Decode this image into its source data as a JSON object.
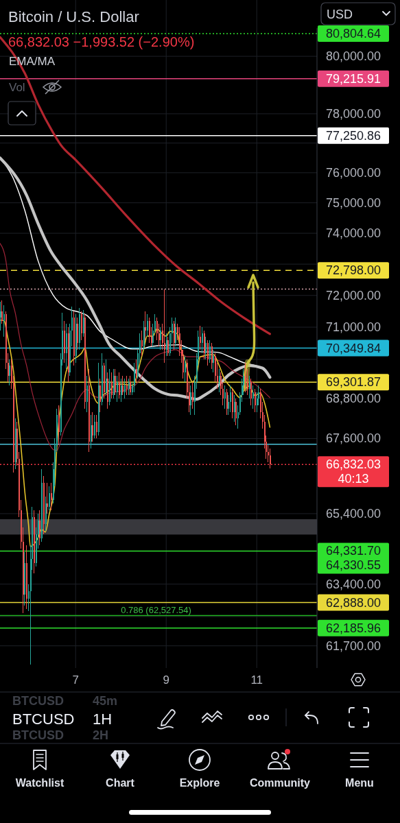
{
  "chart_data": {
    "type": "candlestick",
    "title": "Bitcoin / U.S. Dollar",
    "subtitle": "66,832.03 −1,993.52 (−2.90%)",
    "x": [
      5.3333,
      5.375,
      5.4167,
      5.4583,
      5.5,
      5.5417,
      5.5833,
      5.625,
      5.6667,
      5.7083,
      5.75,
      5.7917,
      5.8333,
      5.875,
      5.9167,
      5.9583,
      6,
      6.0417,
      6.0833,
      6.125,
      6.1667,
      6.2083,
      6.25,
      6.2917,
      6.3333,
      6.375,
      6.4167,
      6.4583,
      6.5,
      6.5417,
      6.5833,
      6.625,
      6.6667,
      6.7083,
      6.75,
      6.7917,
      6.8333,
      6.875,
      6.9167,
      6.9583,
      7,
      7.0417,
      7.0833,
      7.125,
      7.1667,
      7.2083,
      7.25,
      7.2917,
      7.3333,
      7.375,
      7.4167,
      7.4583,
      7.5,
      7.5417,
      7.5833,
      7.625,
      7.6667,
      7.7083,
      7.75,
      7.7917,
      7.8333,
      7.875,
      7.9167,
      7.9583,
      8,
      8.0417,
      8.0833,
      8.125,
      8.1667,
      8.2083,
      8.25,
      8.2917,
      8.3333,
      8.375,
      8.4167,
      8.4583,
      8.5,
      8.5417,
      8.5833,
      8.625,
      8.6667,
      8.7083,
      8.75,
      8.7917,
      8.8333,
      8.875,
      8.9167,
      8.9583,
      9,
      9.0417,
      9.0833,
      9.125,
      9.1667,
      9.2083,
      9.25,
      9.2917,
      9.3333,
      9.375,
      9.4167,
      9.4583,
      9.5,
      9.5417,
      9.5833,
      9.625,
      9.6667,
      9.7083,
      9.75,
      9.7917,
      9.8333,
      9.875,
      9.9167,
      9.9583,
      10,
      10.0417,
      10.0833,
      10.125,
      10.1667,
      10.2083,
      10.25,
      10.2917,
      10.3333,
      10.375,
      10.4167,
      10.4583,
      10.5,
      10.5417,
      10.5833,
      10.625,
      10.6667,
      10.7083,
      10.75,
      10.7917,
      10.8333,
      10.875,
      10.9167,
      10.9583,
      11,
      11.0417,
      11.0833,
      11.125,
      11.1667,
      11.2083,
      11.25,
      11.2917
    ],
    "ohlc": [
      [
        71300,
        71800,
        70900,
        71500
      ],
      [
        71500,
        71850,
        71100,
        71200
      ],
      [
        71200,
        71700,
        70700,
        71400
      ],
      [
        71400,
        71500,
        69700,
        69900
      ],
      [
        69900,
        70200,
        69300,
        69500
      ],
      [
        69500,
        70000,
        69200,
        69800
      ],
      [
        69800,
        70000,
        69100,
        69300
      ],
      [
        69300,
        69500,
        66600,
        66900
      ],
      [
        66900,
        68200,
        66700,
        67900
      ],
      [
        67900,
        68100,
        66800,
        67000
      ],
      [
        67000,
        67200,
        65300,
        65500
      ],
      [
        65500,
        65800,
        64400,
        64600
      ],
      [
        64600,
        65000,
        62600,
        63100
      ],
      [
        63100,
        64300,
        62800,
        64000
      ],
      [
        64000,
        64500,
        62700,
        63000
      ],
      [
        63000,
        63400,
        62650,
        63200
      ],
      [
        63200,
        64500,
        61200,
        64100
      ],
      [
        64100,
        65600,
        63800,
        65300
      ],
      [
        65300,
        65500,
        63700,
        64000
      ],
      [
        64000,
        65000,
        63900,
        64800
      ],
      [
        64800,
        65400,
        64400,
        65200
      ],
      [
        65200,
        65500,
        64500,
        64700
      ],
      [
        64700,
        66700,
        64600,
        66300
      ],
      [
        66300,
        66500,
        64800,
        65100
      ],
      [
        65100,
        65900,
        64900,
        65700
      ],
      [
        65700,
        66300,
        65400,
        65600
      ],
      [
        65600,
        66200,
        65500,
        66000
      ],
      [
        66000,
        66300,
        65500,
        65800
      ],
      [
        65800,
        66900,
        65700,
        66700
      ],
      [
        66700,
        67600,
        66200,
        67400
      ],
      [
        67400,
        68500,
        67200,
        68300
      ],
      [
        68300,
        68600,
        67400,
        67800
      ],
      [
        67800,
        70200,
        67700,
        70000
      ],
      [
        70000,
        71450,
        69800,
        70900
      ],
      [
        70900,
        71200,
        69900,
        70200
      ],
      [
        70200,
        71100,
        69700,
        70800
      ],
      [
        70800,
        71000,
        69300,
        69600
      ],
      [
        69600,
        71100,
        69500,
        70900
      ],
      [
        70900,
        71650,
        70400,
        71300
      ],
      [
        71300,
        71500,
        69800,
        70100
      ],
      [
        70100,
        71400,
        69900,
        71100
      ],
      [
        71100,
        71300,
        70300,
        70500
      ],
      [
        70500,
        71600,
        70300,
        71400
      ],
      [
        71400,
        71500,
        70600,
        70800
      ],
      [
        70800,
        71550,
        70700,
        71300
      ],
      [
        71300,
        71400,
        68500,
        68700
      ],
      [
        68700,
        69500,
        68400,
        69200
      ],
      [
        69200,
        69700,
        67200,
        67500
      ],
      [
        67500,
        68300,
        67300,
        68000
      ],
      [
        68000,
        68400,
        67500,
        67700
      ],
      [
        67700,
        68300,
        67600,
        68100
      ],
      [
        68100,
        68300,
        67600,
        67800
      ],
      [
        67800,
        69900,
        67700,
        69200
      ],
      [
        69200,
        69400,
        68400,
        68700
      ],
      [
        68700,
        70200,
        68600,
        69800
      ],
      [
        69800,
        69900,
        68800,
        69000
      ],
      [
        69000,
        70000,
        68900,
        69400
      ],
      [
        69400,
        69600,
        68500,
        68700
      ],
      [
        68700,
        69700,
        68600,
        69300
      ],
      [
        69300,
        69600,
        68800,
        68900
      ],
      [
        68900,
        69700,
        68800,
        69500
      ],
      [
        69500,
        69700,
        68900,
        69000
      ],
      [
        69000,
        69500,
        68700,
        69300
      ],
      [
        69300,
        69600,
        68800,
        68900
      ],
      [
        68900,
        69400,
        68700,
        69200
      ],
      [
        69200,
        69500,
        68900,
        69000
      ],
      [
        69000,
        69400,
        68800,
        69200
      ],
      [
        69200,
        69500,
        68900,
        69100
      ],
      [
        69100,
        69400,
        68900,
        69300
      ],
      [
        69300,
        69500,
        68900,
        69000
      ],
      [
        69000,
        69300,
        68900,
        69200
      ],
      [
        69200,
        69900,
        69000,
        69700
      ],
      [
        69700,
        70000,
        69300,
        69500
      ],
      [
        69500,
        70300,
        69400,
        70200
      ],
      [
        70200,
        70800,
        69900,
        70600
      ],
      [
        70600,
        70900,
        70100,
        70400
      ],
      [
        70400,
        71200,
        70300,
        71000
      ],
      [
        71000,
        71500,
        70600,
        70900
      ],
      [
        70900,
        71400,
        70700,
        71200
      ],
      [
        71200,
        71300,
        70500,
        70700
      ],
      [
        70700,
        71000,
        70400,
        70500
      ],
      [
        70500,
        71100,
        70400,
        70900
      ],
      [
        70900,
        71400,
        70800,
        71200
      ],
      [
        71200,
        71300,
        70600,
        70800
      ],
      [
        70800,
        71100,
        70400,
        70600
      ],
      [
        70600,
        71000,
        70300,
        70900
      ],
      [
        70900,
        71100,
        70300,
        70500
      ],
      [
        70500,
        72200,
        69900,
        70300
      ],
      [
        70300,
        70800,
        70100,
        70600
      ],
      [
        70600,
        70700,
        70100,
        70200
      ],
      [
        70200,
        71000,
        70100,
        70800
      ],
      [
        70800,
        71300,
        70500,
        71100
      ],
      [
        71100,
        71200,
        70300,
        70500
      ],
      [
        70500,
        71300,
        70400,
        71000
      ],
      [
        71000,
        71100,
        70600,
        70800
      ],
      [
        70800,
        71000,
        70100,
        70300
      ],
      [
        70300,
        70600,
        69900,
        70100
      ],
      [
        70100,
        70300,
        69400,
        69600
      ],
      [
        69600,
        70100,
        69300,
        69900
      ],
      [
        69900,
        70000,
        68800,
        69000
      ],
      [
        69000,
        69300,
        68400,
        68600
      ],
      [
        68600,
        69200,
        68300,
        69000
      ],
      [
        69000,
        69300,
        68500,
        68700
      ],
      [
        68700,
        69500,
        68300,
        69300
      ],
      [
        69300,
        70200,
        69100,
        70000
      ],
      [
        70000,
        70900,
        69800,
        70700
      ],
      [
        70700,
        71050,
        70300,
        70500
      ],
      [
        70500,
        71000,
        70200,
        70800
      ],
      [
        70800,
        70900,
        70000,
        70200
      ],
      [
        70200,
        70700,
        70000,
        70500
      ],
      [
        70500,
        70600,
        69800,
        70000
      ],
      [
        70000,
        70600,
        69900,
        70400
      ],
      [
        70400,
        70500,
        69700,
        69900
      ],
      [
        69900,
        70300,
        69600,
        70100
      ],
      [
        70100,
        70200,
        69300,
        69500
      ],
      [
        69500,
        69900,
        69100,
        69300
      ],
      [
        69300,
        69700,
        69000,
        69500
      ],
      [
        69500,
        69600,
        68900,
        69100
      ],
      [
        69100,
        69300,
        68600,
        68800
      ],
      [
        68800,
        69200,
        68500,
        69000
      ],
      [
        69000,
        69100,
        68300,
        68500
      ],
      [
        68500,
        68900,
        68300,
        68700
      ],
      [
        68700,
        69200,
        68400,
        69000
      ],
      [
        69000,
        69100,
        68200,
        68400
      ],
      [
        68400,
        68900,
        68100,
        68700
      ],
      [
        68700,
        68800,
        68000,
        68200
      ],
      [
        68200,
        68600,
        67900,
        68400
      ],
      [
        68400,
        69000,
        68300,
        68900
      ],
      [
        68900,
        69400,
        68700,
        69200
      ],
      [
        69200,
        69700,
        68900,
        69500
      ],
      [
        69500,
        69900,
        69000,
        69300
      ],
      [
        69300,
        69700,
        68900,
        69100
      ],
      [
        69100,
        69500,
        68800,
        69300
      ],
      [
        69300,
        69400,
        68600,
        68800
      ],
      [
        68800,
        69200,
        68500,
        69000
      ],
      [
        69000,
        69100,
        68400,
        68600
      ],
      [
        68600,
        69000,
        68400,
        68800
      ],
      [
        68800,
        69200,
        68600,
        69000
      ],
      [
        69000,
        69100,
        68200,
        68400
      ],
      [
        68400,
        68700,
        67900,
        68100
      ],
      [
        68100,
        68300,
        67300,
        67500
      ],
      [
        67500,
        67700,
        67000,
        67200
      ],
      [
        67200,
        67400,
        66900,
        67100
      ],
      [
        67100,
        67300,
        66710,
        66832.03
      ]
    ],
    "series": [
      {
        "type": "line",
        "color": "#b3262f",
        "x": [
          5.33,
          5.88,
          6.17,
          6.5,
          6.67,
          7,
          7.58,
          8.13,
          8.71,
          9.21,
          9.71,
          10.21,
          10.71,
          11.29
        ],
        "values": [
          80680,
          79400,
          78330,
          77360,
          76940,
          76430,
          75490,
          74560,
          73650,
          72960,
          72390,
          71800,
          71300,
          70790
        ]
      },
      {
        "type": "line",
        "color": "#ffffff",
        "x": [
          5.33,
          5.63,
          5.88,
          6.17,
          6.5,
          6.79,
          7.08,
          7.25,
          7.54,
          7.83,
          8.25,
          8.46,
          8.63,
          8.92,
          9.29,
          9.42,
          9.71,
          10.13,
          10.42,
          10.71,
          11.08,
          11.29
        ],
        "values": [
          76500,
          75790,
          74740,
          73110,
          72020,
          71600,
          71470,
          71370,
          70870,
          70600,
          70320,
          70320,
          70390,
          70430,
          70450,
          70390,
          70240,
          70220,
          70070,
          69900,
          69750,
          69480
        ]
      },
      {
        "type": "line",
        "color": "#c4c4c4",
        "x": [
          5.33,
          5.92,
          6.17,
          6.46,
          6.67,
          6.96,
          7.25,
          7.5,
          7.75,
          8,
          8.25,
          8.5,
          8.75,
          9.04,
          9.29,
          9.5,
          9.67,
          9.83,
          10.13,
          10.38,
          10.63,
          10.83,
          11.13,
          11.29
        ],
        "values": [
          76500,
          75240,
          74320,
          73400,
          72960,
          72430,
          71840,
          71150,
          70450,
          70090,
          69730,
          69390,
          69100,
          68930,
          68890,
          68830,
          68780,
          68890,
          69180,
          69520,
          69730,
          69810,
          69730,
          69450
        ]
      },
      {
        "type": "line",
        "color": "#9e2438",
        "x": [
          5.33,
          5.46,
          5.54,
          5.67,
          5.79,
          5.92,
          6.04,
          6.21,
          6.38,
          6.5,
          6.58,
          6.75,
          6.92,
          7.08,
          7.25,
          7.38,
          7.54,
          7.75,
          8,
          8.25,
          8.42,
          8.54,
          8.75,
          9,
          9.21,
          9.46,
          9.71,
          10.21,
          10.46,
          10.71,
          10.96,
          11.29
        ],
        "values": [
          73670,
          73110,
          72200,
          71430,
          70490,
          69790,
          68990,
          68180,
          67550,
          67280,
          67240,
          67880,
          68340,
          68830,
          69080,
          68890,
          68830,
          68970,
          69030,
          69140,
          69390,
          69730,
          70080,
          70230,
          70300,
          70080,
          70080,
          69940,
          69660,
          69450,
          69240,
          68830
        ]
      },
      {
        "type": "line",
        "color": "#e3c22a",
        "x": [
          5.33,
          5.42,
          5.5,
          5.63,
          5.71,
          5.79,
          5.88,
          5.96,
          6,
          6.17,
          6.25,
          6.33,
          6.42,
          6.54,
          6.58,
          6.71,
          6.79,
          6.92,
          7.04,
          7.13,
          7.21,
          7.29,
          7.38,
          7.5,
          7.58,
          7.67,
          7.79,
          7.88,
          8.04,
          8.25,
          8.33,
          8.42,
          8.5,
          8.58,
          8.71,
          8.79,
          8.92,
          9,
          9.08,
          9.25,
          9.29,
          9.42,
          9.5,
          9.58,
          9.67,
          9.75,
          10.04,
          10.17,
          10.29,
          10.46,
          10.63,
          10.71,
          10.83,
          10.96,
          11.08,
          11.17,
          11.29
        ],
        "values": [
          71220,
          71200,
          70680,
          69620,
          68510,
          67410,
          66010,
          65080,
          64460,
          64710,
          64950,
          64870,
          65400,
          66230,
          67240,
          68990,
          69620,
          69960,
          70080,
          70190,
          70360,
          69520,
          68970,
          68660,
          68870,
          68970,
          69100,
          69240,
          69240,
          69200,
          69390,
          69870,
          70300,
          70720,
          70720,
          70940,
          70790,
          70720,
          70870,
          70790,
          70510,
          69940,
          69520,
          69310,
          69520,
          70080,
          70150,
          69810,
          69390,
          69100,
          68830,
          69030,
          69180,
          68890,
          68970,
          68680,
          67940
        ]
      }
    ],
    "xlim": [
      5.33,
      12.33
    ],
    "xticks": [
      7,
      9,
      11
    ],
    "ylim": [
      61100,
      81000
    ],
    "log": true,
    "grid": true,
    "yticks": [
      {
        "value": 61700,
        "label": "61,700.00"
      },
      {
        "value": 62500,
        "label": null
      },
      {
        "value": 63400,
        "label": "63,400.00"
      },
      {
        "value": 65400,
        "label": "65,400.00"
      },
      {
        "value": 67600,
        "label": "67,600.00"
      },
      {
        "value": 68800,
        "label": "68,800.00"
      },
      {
        "value": 70000,
        "label": null
      },
      {
        "value": 71000,
        "label": "71,000.00"
      },
      {
        "value": 72000,
        "label": "72,000.00"
      },
      {
        "value": 73000,
        "label": null
      },
      {
        "value": 74000,
        "label": "74,000.00"
      },
      {
        "value": 75000,
        "label": "75,000.00"
      },
      {
        "value": 76000,
        "label": "76,000.00"
      },
      {
        "value": 77000,
        "label": null
      },
      {
        "value": 78000,
        "label": "78,000.00"
      },
      {
        "value": 80000,
        "label": "80,000.00"
      }
    ],
    "ref_lines": [
      {
        "axis": "y",
        "value": 80804.64,
        "label": "80,804.64",
        "color": "#2fe02f",
        "line_style": "dotted"
      },
      {
        "axis": "y",
        "value": 79215.91,
        "label": "79,215.91",
        "color": "#e8457c"
      },
      {
        "axis": "y",
        "value": 77250.86,
        "label": "77,250.86",
        "color": "#ffffff"
      },
      {
        "axis": "y",
        "value": 72798,
        "label": "72,798.00",
        "color": "#f2df3c",
        "line_style": "dashed"
      },
      {
        "axis": "y",
        "value": 72200,
        "color": "#d7a3ab",
        "line_style": "dotted"
      },
      {
        "axis": "y",
        "value": 70349.84,
        "label": "70,349.84",
        "color": "#22b8d6"
      },
      {
        "axis": "y",
        "value": 69301.87,
        "label": "69,301.87",
        "color": "#f2df3c"
      },
      {
        "axis": "y",
        "value": 67430,
        "color": "#4cc3d9"
      },
      {
        "axis": "y",
        "value": 66832.03,
        "label": "66,832.03\n40:13",
        "color": "#f23645",
        "line_style": "dotted"
      },
      {
        "axis": "y",
        "value": 64331.7,
        "label": "64,331.70\n64,330.55",
        "color": "#2fe02f"
      },
      {
        "axis": "y",
        "value": 62888,
        "label": "62,888.00",
        "color": "#e8d83a"
      },
      {
        "axis": "y",
        "value": 62527.54,
        "color": "#22b322"
      },
      {
        "axis": "y",
        "value": 62185.96,
        "label": "62,185.96",
        "color": "#2fe02f"
      }
    ],
    "bands": [
      {
        "axis": "y",
        "from": 64800,
        "to": 65240,
        "color": "#38383d"
      }
    ],
    "annotations": [
      "USD",
      "EMA/MA",
      "Vol",
      {
        "text": "0.786 (62,527.54)",
        "x": 8,
        "y": 62527.54
      },
      "BTCUSD",
      "45m",
      "BTCUSD",
      "1H",
      "BTCUSD",
      "2H",
      "Watchlist",
      "Chart",
      "Explore",
      "Community",
      "Menu"
    ]
  }
}
